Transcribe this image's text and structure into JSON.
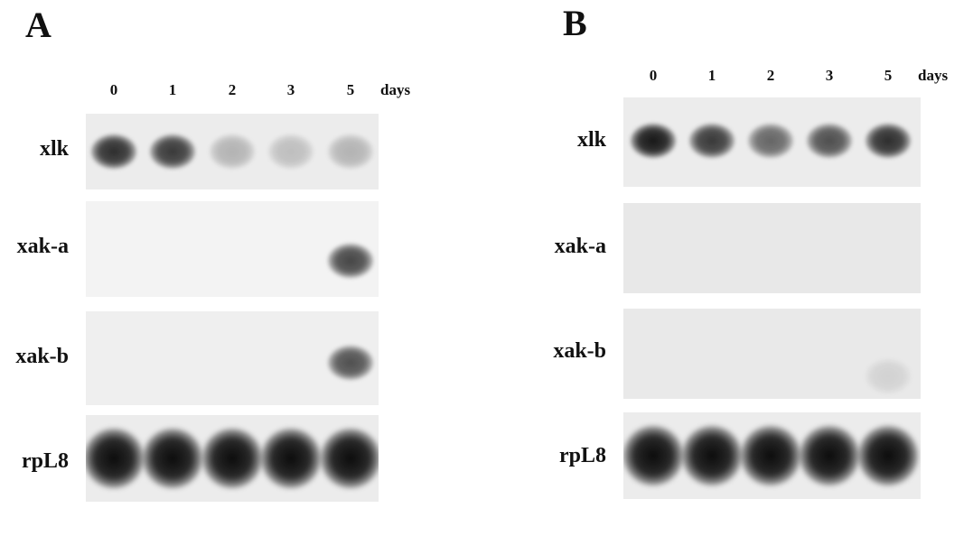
{
  "panels": [
    {
      "letter": "A",
      "lanes": [
        "0",
        "1",
        "2",
        "3",
        "5"
      ],
      "unit": "days",
      "rows": [
        {
          "label": "xlk",
          "intensity": [
            0.85,
            0.8,
            0.25,
            0.2,
            0.25
          ]
        },
        {
          "label": "xak-a",
          "intensity": [
            0,
            0,
            0,
            0,
            0.75
          ]
        },
        {
          "label": "xak-b",
          "intensity": [
            0,
            0,
            0,
            0,
            0.7
          ]
        },
        {
          "label": "rpL8",
          "intensity": [
            1,
            1,
            1,
            1,
            1
          ]
        }
      ]
    },
    {
      "letter": "B",
      "lanes": [
        "0",
        "1",
        "2",
        "3",
        "5"
      ],
      "unit": "days",
      "rows": [
        {
          "label": "xlk",
          "intensity": [
            0.95,
            0.8,
            0.6,
            0.7,
            0.85
          ]
        },
        {
          "label": "xak-a",
          "intensity": [
            0,
            0,
            0,
            0,
            0
          ]
        },
        {
          "label": "xak-b",
          "intensity": [
            0,
            0,
            0,
            0,
            0.1
          ]
        },
        {
          "label": "rpL8",
          "intensity": [
            1,
            1,
            1,
            1,
            1
          ]
        }
      ]
    }
  ]
}
